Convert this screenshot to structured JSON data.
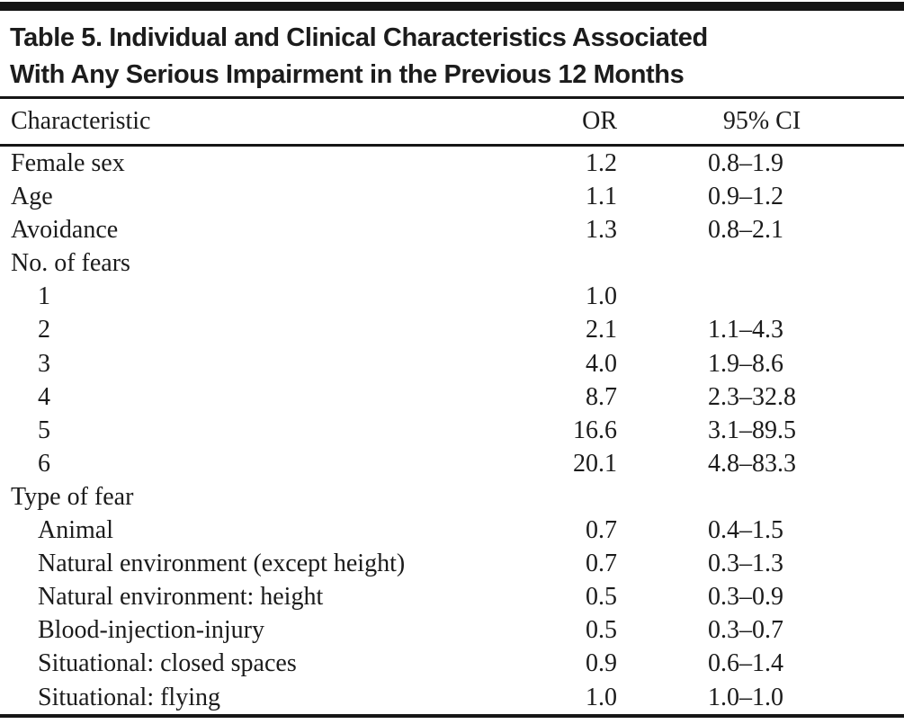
{
  "table": {
    "title_lines": [
      "Table 5. Individual and Clinical Characteristics Associated",
      "With Any Serious Impairment in the Previous 12 Months"
    ],
    "columns": {
      "characteristic": "Characteristic",
      "or": "OR",
      "ci": "95% CI"
    },
    "rows": [
      {
        "label": "Female sex",
        "indent": 0,
        "or": "1.2",
        "ci": "0.8–1.9"
      },
      {
        "label": "Age",
        "indent": 0,
        "or": "1.1",
        "ci": "0.9–1.2"
      },
      {
        "label": "Avoidance",
        "indent": 0,
        "or": "1.3",
        "ci": "0.8–2.1"
      },
      {
        "label": "No. of fears",
        "indent": 0,
        "or": "",
        "ci": ""
      },
      {
        "label": "1",
        "indent": 1,
        "or": "1.0",
        "ci": ""
      },
      {
        "label": "2",
        "indent": 1,
        "or": "2.1",
        "ci": "1.1–4.3"
      },
      {
        "label": "3",
        "indent": 1,
        "or": "4.0",
        "ci": "1.9–8.6"
      },
      {
        "label": "4",
        "indent": 1,
        "or": "8.7",
        "ci": "2.3–32.8"
      },
      {
        "label": "5",
        "indent": 1,
        "or": "16.6",
        "ci": "3.1–89.5"
      },
      {
        "label": "6",
        "indent": 1,
        "or": "20.1",
        "ci": "4.8–83.3"
      },
      {
        "label": "Type of fear",
        "indent": 0,
        "or": "",
        "ci": ""
      },
      {
        "label": "Animal",
        "indent": 1,
        "or": "0.7",
        "ci": "0.4–1.5"
      },
      {
        "label": "Natural environment (except height)",
        "indent": 1,
        "or": "0.7",
        "ci": "0.3–1.3"
      },
      {
        "label": "Natural environment: height",
        "indent": 1,
        "or": "0.5",
        "ci": "0.3–0.9"
      },
      {
        "label": "Blood-injection-injury",
        "indent": 1,
        "or": "0.5",
        "ci": "0.3–0.7"
      },
      {
        "label": "Situational: closed spaces",
        "indent": 1,
        "or": "0.9",
        "ci": "0.6–1.4"
      },
      {
        "label": "Situational: flying",
        "indent": 1,
        "or": "1.0",
        "ci": "1.0–1.0"
      }
    ]
  },
  "colors": {
    "background": "#ffffff",
    "text": "#1b1b1b",
    "rule": "#161616"
  }
}
